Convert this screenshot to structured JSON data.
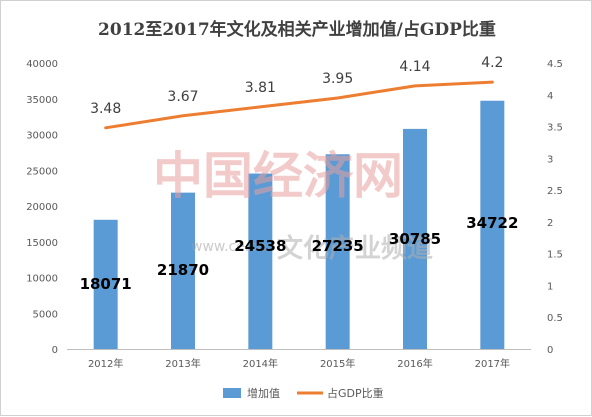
{
  "chart_data": {
    "type": "bar",
    "title": "2012至2017年文化及相关产业增加值/占GDP比重",
    "categories": [
      "2012年",
      "2013年",
      "2014年",
      "2015年",
      "2016年",
      "2017年"
    ],
    "series": [
      {
        "name": "增加值",
        "type": "bar",
        "axis": "left",
        "color": "#5b9bd5",
        "values": [
          18071,
          21870,
          24538,
          27235,
          30785,
          34722
        ]
      },
      {
        "name": "占GDP比重",
        "type": "line",
        "axis": "right",
        "color": "#ed7d31",
        "values": [
          3.48,
          3.67,
          3.81,
          3.95,
          4.14,
          4.2
        ]
      }
    ],
    "bar_labels": [
      "18071",
      "21870",
      "24538",
      "27235",
      "30785",
      "34722"
    ],
    "line_labels": [
      "3.48",
      "3.67",
      "3.81",
      "3.95",
      "4.14",
      "4.2"
    ],
    "ylim_left": [
      0,
      40000
    ],
    "ylim_right": [
      0,
      4.5
    ],
    "yticks_left": [
      "0",
      "5000",
      "10000",
      "15000",
      "20000",
      "25000",
      "30000",
      "35000",
      "40000"
    ],
    "yticks_right": [
      "0",
      "0.5",
      "1",
      "1.5",
      "2",
      "2.5",
      "3",
      "3.5",
      "4",
      "4.5"
    ],
    "grid": false,
    "legend": "bottom"
  },
  "watermark": {
    "brand": "中国经济网",
    "url": "www.ce.cn",
    "tagline": "文化产业频道"
  }
}
